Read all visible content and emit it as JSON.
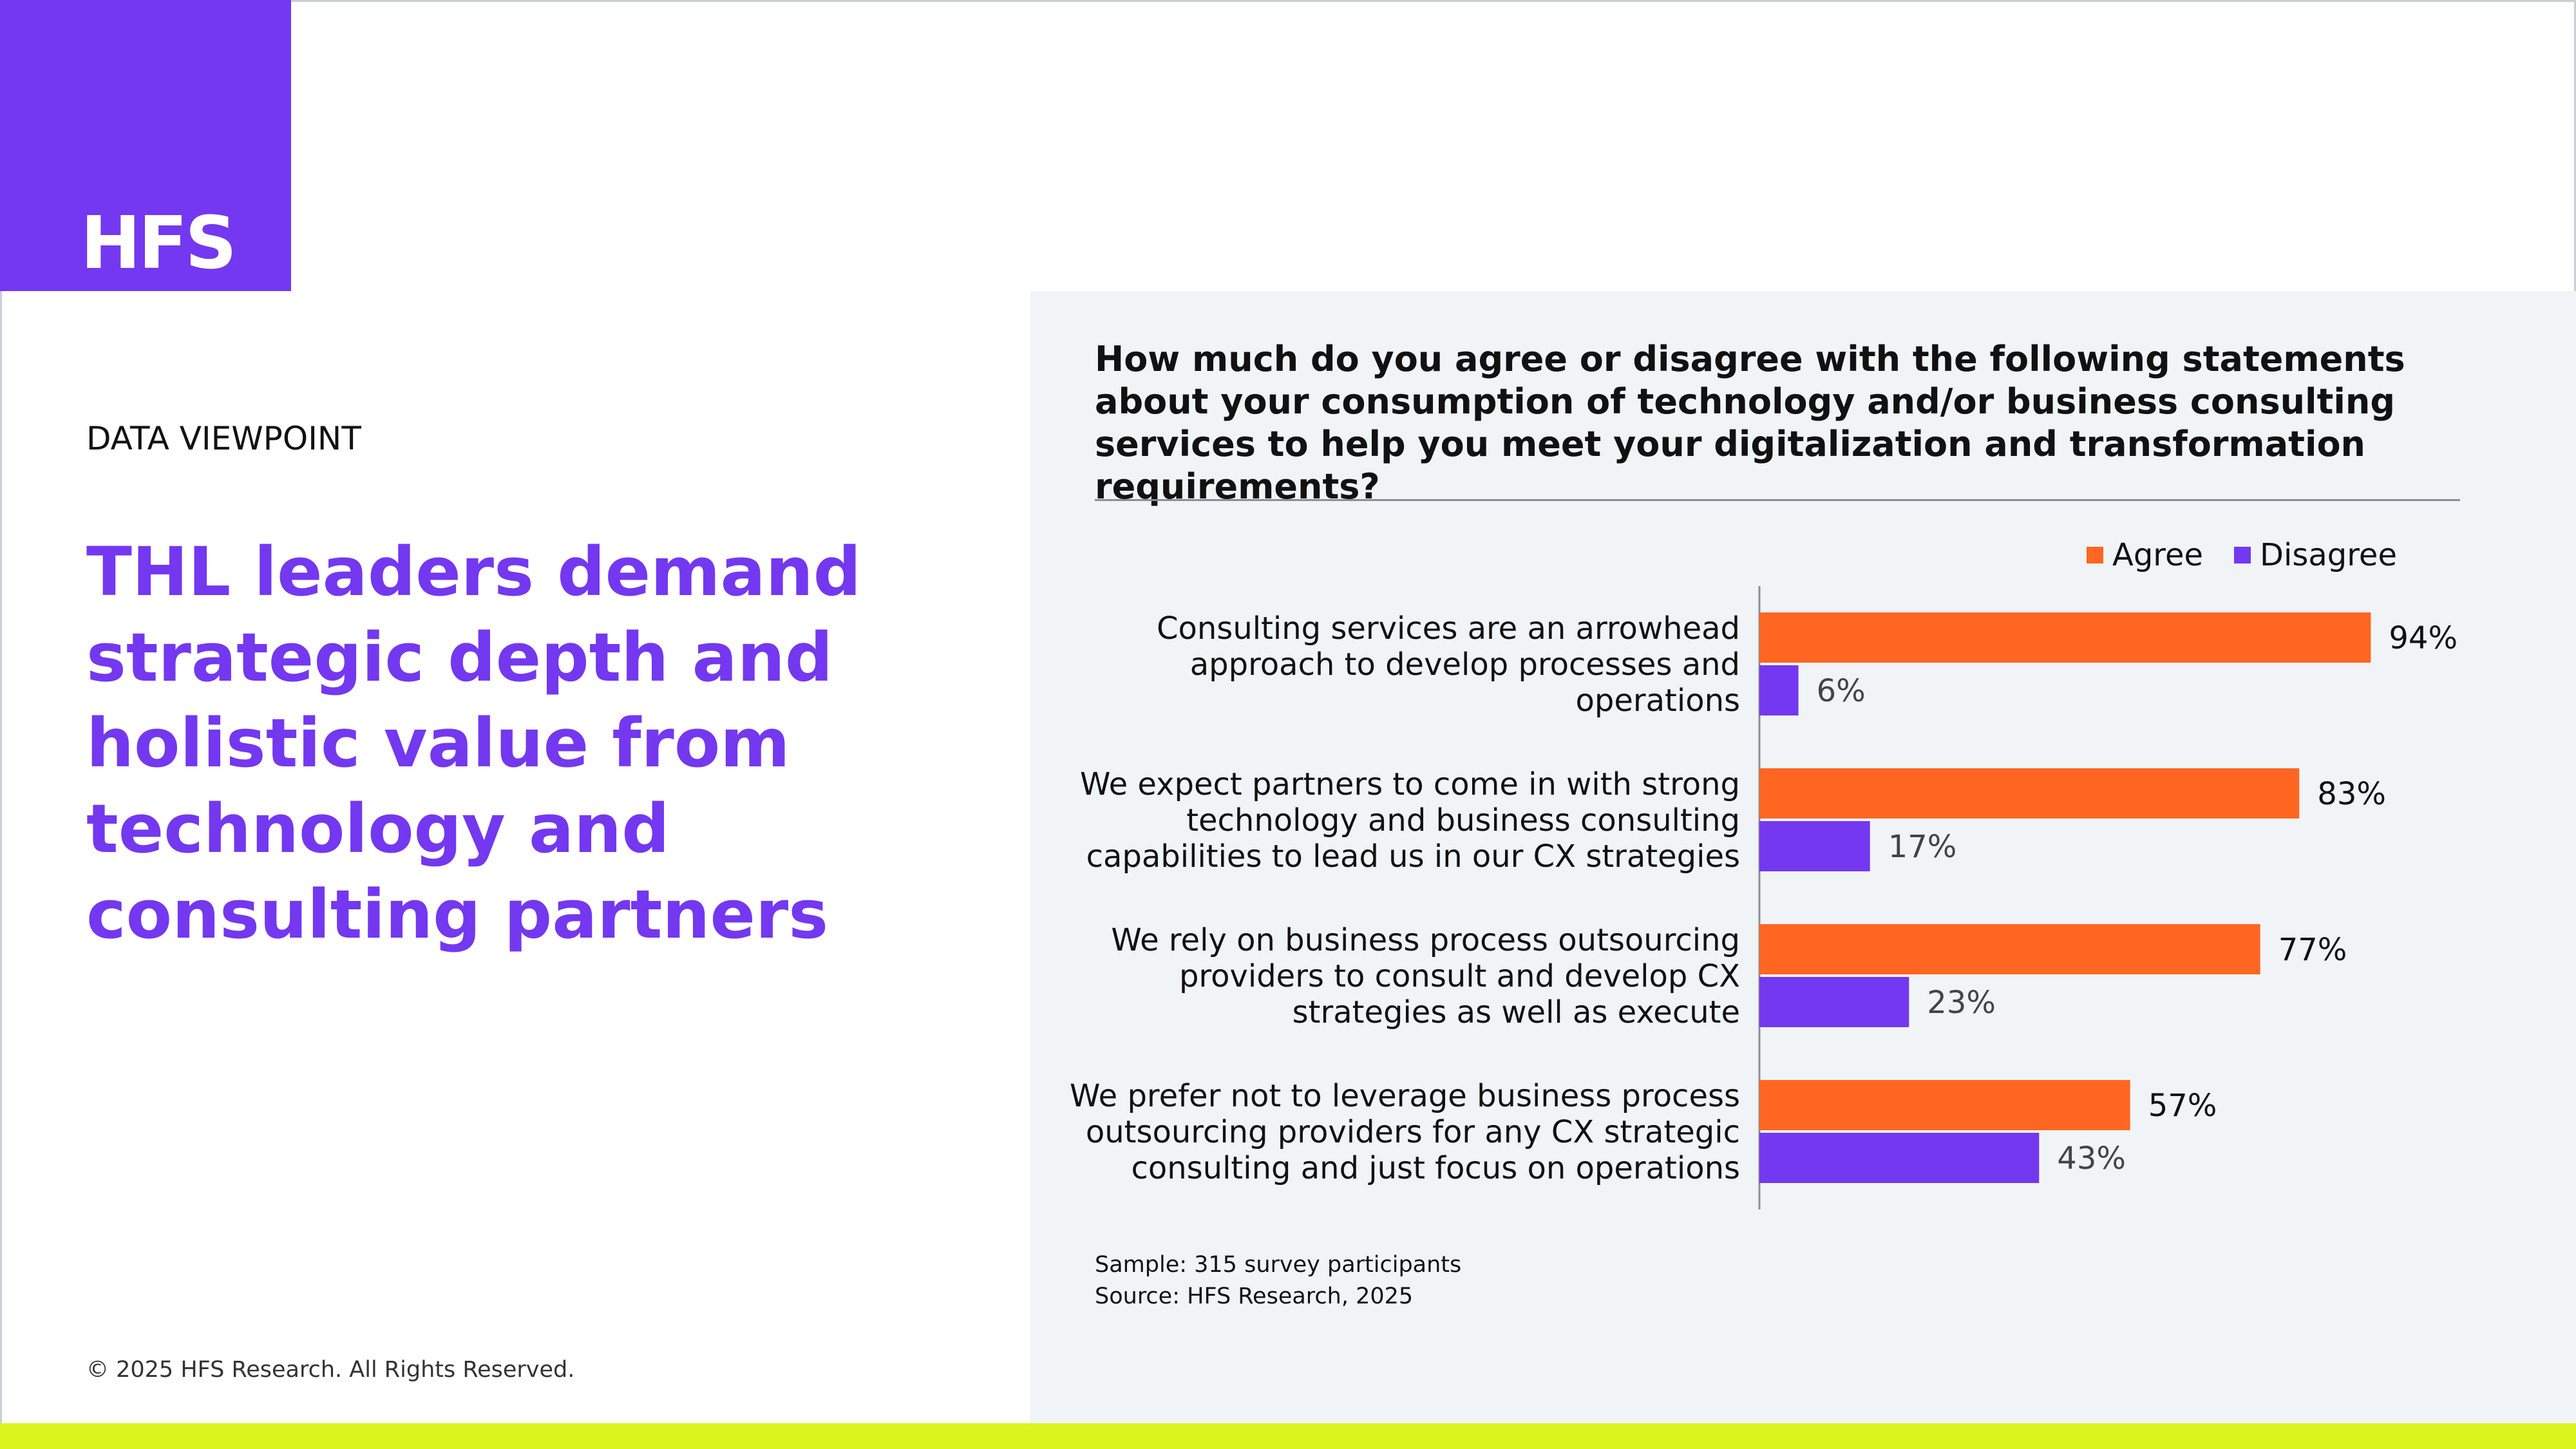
{
  "brand": {
    "logo_text": "HFS",
    "colors": {
      "purple": "#7338f0",
      "orange": "#ff6622",
      "lime": "#daf51e",
      "panel": "#f1f4f7"
    }
  },
  "left": {
    "kicker": "DATA VIEWPOINT",
    "headline": "THL leaders demand strategic depth and holistic value from technology and consulting partners",
    "copyright": "© 2025 HFS Research. All Rights Reserved."
  },
  "question": "How much do you agree or disagree with the following statements about your consumption of technology and/or business consulting services to help you meet your digitalization and transformation requirements?",
  "chart_data": {
    "type": "bar",
    "orientation": "horizontal",
    "categories": [
      "Consulting services are an arrowhead approach to develop processes and operations",
      "We expect partners to come in with strong technology and business consulting capabilities to lead us in our CX strategies",
      "We rely on business process outsourcing providers to consult and develop CX strategies as well as execute",
      "We prefer not to leverage business process outsourcing providers for any CX strategic consulting and just focus on operations"
    ],
    "category_lines": [
      [
        "Consulting services are an arrowhead",
        "approach to develop processes and",
        "operations"
      ],
      [
        "We expect partners to come in with strong",
        "technology and business consulting",
        "capabilities to lead us in our CX strategies"
      ],
      [
        "We rely on business process outsourcing",
        "providers to consult and develop CX",
        "strategies as well as execute"
      ],
      [
        "We prefer not to leverage business process",
        "outsourcing providers for any CX strategic",
        "consulting and just focus on operations"
      ]
    ],
    "series": [
      {
        "name": "Agree",
        "color": "#ff6622",
        "values": [
          94,
          83,
          77,
          57
        ],
        "labels": [
          "94%",
          "83%",
          "77%",
          "57%"
        ]
      },
      {
        "name": "Disagree",
        "color": "#7338f0",
        "values": [
          6,
          17,
          23,
          43
        ],
        "labels": [
          "6%",
          "17%",
          "23%",
          "43%"
        ]
      }
    ],
    "xlim": [
      0,
      100
    ],
    "legend_position": "top-right",
    "grid": false
  },
  "footer": {
    "sample": "Sample: 315 survey participants",
    "source": "Source: HFS Research, 2025"
  }
}
